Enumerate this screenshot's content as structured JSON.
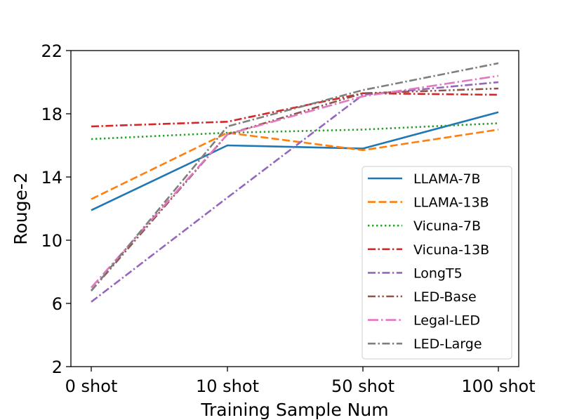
{
  "chart_data": {
    "type": "line",
    "title": "",
    "xlabel": "Training Sample Num",
    "ylabel": "Rouge-2",
    "categories": [
      "0 shot",
      "10 shot",
      "50 shot",
      "100 shot"
    ],
    "ylim": [
      2,
      22
    ],
    "yticks": [
      2,
      6,
      10,
      14,
      18,
      22
    ],
    "grid": false,
    "legend_position": "lower-right",
    "series": [
      {
        "name": "LLAMA-7B",
        "values": [
          11.9,
          16.0,
          15.8,
          18.1
        ],
        "color": "#1f77b4",
        "style": "solid"
      },
      {
        "name": "LLAMA-13B",
        "values": [
          12.6,
          16.8,
          15.7,
          17.0
        ],
        "color": "#ff7f0e",
        "style": "dashed"
      },
      {
        "name": "Vicuna-7B",
        "values": [
          16.4,
          16.8,
          17.0,
          17.4
        ],
        "color": "#2ca02c",
        "style": "dotted"
      },
      {
        "name": "Vicuna-13B",
        "values": [
          17.2,
          17.5,
          19.3,
          19.2
        ],
        "color": "#d62728",
        "style": "dashdot"
      },
      {
        "name": "LongT5",
        "values": [
          6.1,
          12.7,
          19.2,
          20.0
        ],
        "color": "#9467bd",
        "style": "dashdot"
      },
      {
        "name": "LED-Base",
        "values": [
          6.8,
          16.7,
          19.3,
          19.6
        ],
        "color": "#8c564b",
        "style": "dashdotdot"
      },
      {
        "name": "Legal-LED",
        "values": [
          7.0,
          16.7,
          19.1,
          20.4
        ],
        "color": "#e377c2",
        "style": "longdashdot"
      },
      {
        "name": "LED-Large",
        "values": [
          6.8,
          17.2,
          19.5,
          21.2
        ],
        "color": "#7f7f7f",
        "style": "dashdot"
      }
    ]
  }
}
